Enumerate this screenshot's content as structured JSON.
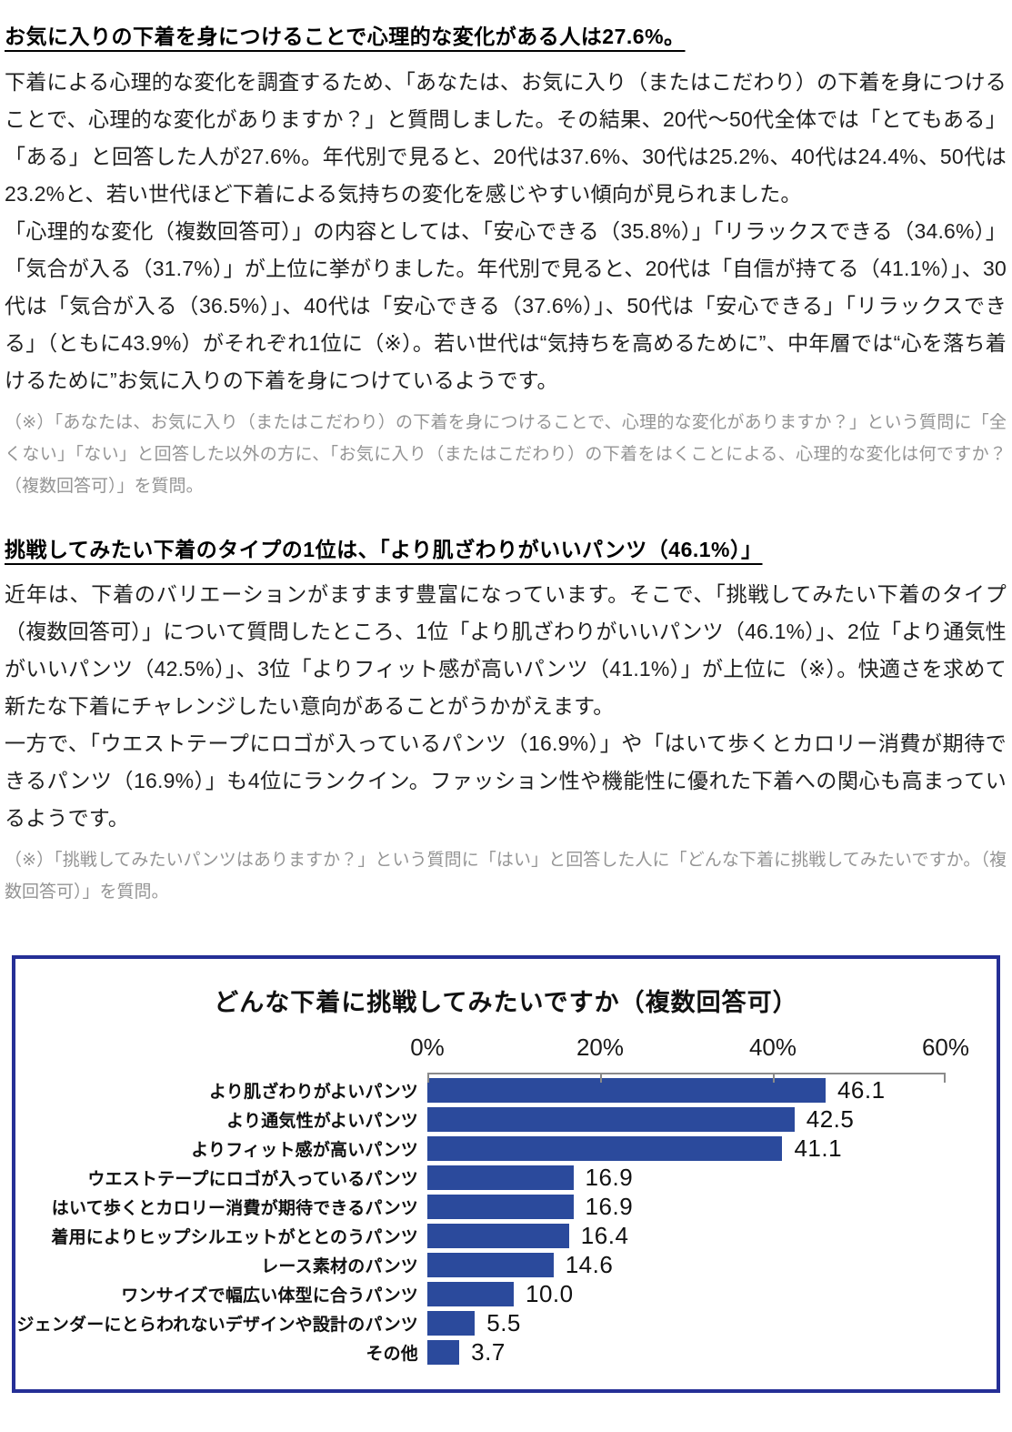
{
  "article": {
    "sections": [
      {
        "heading": "お気に入りの下着を身につけることで心理的な変化がある人は27.6%。",
        "paragraphs": [
          "下着による心理的な変化を調査するため、「あなたは、お気に入り（またはこだわり）の下着を身につけることで、心理的な変化がありますか？」と質問しました。その結果、20代〜50代全体では「とてもある」「ある」と回答した人が27.6%。年代別で見ると、20代は37.6%、30代は25.2%、40代は24.4%、50代は23.2%と、若い世代ほど下着による気持ちの変化を感じやすい傾向が見られました。",
          "「心理的な変化（複数回答可）」の内容としては、「安心できる（35.8%）」「リラックスできる（34.6%）」「気合が入る（31.7%）」が上位に挙がりました。年代別で見ると、20代は「自信が持てる（41.1%）」、30代は「気合が入る（36.5%）」、40代は「安心できる（37.6%）」、50代は「安心できる」「リラックスできる」（ともに43.9%）がそれぞれ1位に（※）。若い世代は“気持ちを高めるために”、中年層では“心を落ち着けるために”お気に入りの下着を身につけているようです。"
        ],
        "note": "（※）「あなたは、お気に入り（またはこだわり）の下着を身につけることで、心理的な変化がありますか？」という質問に「全くない」「ない」と回答した以外の方に、「お気に入り（またはこだわり）の下着をはくことによる、心理的な変化は何ですか？（複数回答可）」を質問。"
      },
      {
        "heading": "挑戦してみたい下着のタイプの1位は、「より肌ざわりがいいパンツ（46.1%）」",
        "paragraphs": [
          "近年は、下着のバリエーションがますます豊富になっています。そこで、「挑戦してみたい下着のタイプ（複数回答可）」について質問したところ、1位「より肌ざわりがいいパンツ（46.1%）」、2位「より通気性がいいパンツ（42.5%）」、3位「よりフィット感が高いパンツ（41.1%）」が上位に（※）。快適さを求めて新たな下着にチャレンジしたい意向があることがうかがえます。",
          "一方で、「ウエストテープにロゴが入っているパンツ（16.9%）」や「はいて歩くとカロリー消費が期待できるパンツ（16.9%）」も4位にランクイン。ファッション性や機能性に優れた下着への関心も高まっているようです。"
        ],
        "note": "（※）「挑戦してみたいパンツはありますか？」という質問に「はい」と回答した人に「どんな下着に挑戦してみたいですか。（複数回答可）」を質問。"
      }
    ]
  },
  "chart_data": {
    "type": "bar",
    "orientation": "horizontal",
    "title": "どんな下着に挑戦してみたいですか（複数回答可）",
    "categories": [
      "より肌ざわりがよいパンツ",
      "より通気性がよいパンツ",
      "よりフィット感が高いパンツ",
      "ウエストテープにロゴが入っているパンツ",
      "はいて歩くとカロリー消費が期待できるパンツ",
      "着用によりヒップシルエットがととのうパンツ",
      "レース素材のパンツ",
      "ワンサイズで幅広い体型に合うパンツ",
      "ジェンダーにとらわれないデザインや設計のパンツ",
      "その他"
    ],
    "values": [
      46.1,
      42.5,
      41.1,
      16.9,
      16.9,
      16.4,
      14.6,
      10.0,
      5.5,
      3.7
    ],
    "x_ticks": [
      "0%",
      "20%",
      "40%",
      "60%"
    ],
    "x_tick_values": [
      0,
      20,
      40,
      60
    ],
    "xlim": [
      0,
      60
    ],
    "grid": false,
    "legend": false,
    "colors": {
      "bar": "#2b4a9c",
      "frame": "#252f96",
      "axis_line": "#8a8a8a"
    }
  }
}
